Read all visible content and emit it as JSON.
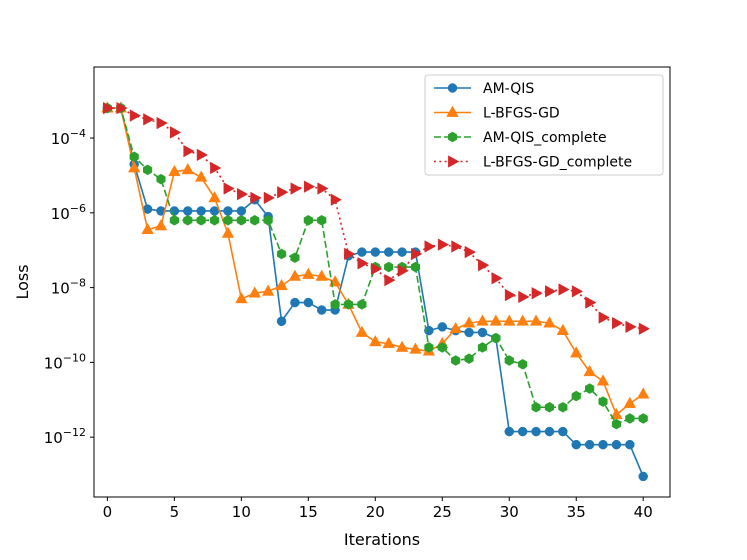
{
  "chart_data": {
    "type": "line",
    "title": "",
    "xlabel": "Iterations",
    "ylabel": "Loss",
    "yscale": "log",
    "xlim": [
      -1,
      42
    ],
    "ylim_log10": [
      -13.6,
      -2.1
    ],
    "xticks": [
      0,
      5,
      10,
      15,
      20,
      25,
      30,
      35,
      40
    ],
    "xtick_labels": [
      "0",
      "5",
      "10",
      "15",
      "20",
      "25",
      "30",
      "35",
      "40"
    ],
    "yticks_log10": [
      -4,
      -6,
      -8,
      -10,
      -12
    ],
    "ytick_labels": [
      {
        "base": "10",
        "exp": "−4"
      },
      {
        "base": "10",
        "exp": "−6"
      },
      {
        "base": "10",
        "exp": "−8"
      },
      {
        "base": "10",
        "exp": "−10"
      },
      {
        "base": "10",
        "exp": "−12"
      }
    ],
    "grid": false,
    "legend_position": "top-right",
    "series": [
      {
        "name": "AM-QIS",
        "color": "#1f77b4",
        "linestyle": "solid",
        "marker": "circle",
        "x": [
          0,
          1,
          2,
          3,
          4,
          5,
          6,
          7,
          8,
          9,
          10,
          11,
          12,
          13,
          14,
          15,
          16,
          17,
          18,
          19,
          20,
          21,
          22,
          23,
          24,
          25,
          26,
          27,
          28,
          29,
          30,
          31,
          32,
          33,
          34,
          35,
          36,
          37,
          38,
          39,
          40
        ],
        "log10_values": [
          -3.2,
          -3.2,
          -4.7,
          -5.9,
          -5.95,
          -5.95,
          -5.95,
          -5.95,
          -5.95,
          -5.95,
          -5.95,
          -5.65,
          -6.1,
          -8.9,
          -8.4,
          -8.4,
          -8.6,
          -8.6,
          -7.15,
          -7.05,
          -7.05,
          -7.05,
          -7.05,
          -7.05,
          -9.15,
          -9.05,
          -9.15,
          -9.2,
          -9.2,
          -9.35,
          -11.85,
          -11.85,
          -11.85,
          -11.85,
          -11.85,
          -12.2,
          -12.2,
          -12.2,
          -12.2,
          -12.2,
          -13.05
        ]
      },
      {
        "name": "L-BFGS-GD",
        "color": "#ff7f0e",
        "linestyle": "solid",
        "marker": "triangle-up",
        "x": [
          0,
          1,
          2,
          3,
          4,
          5,
          6,
          7,
          8,
          9,
          10,
          11,
          12,
          13,
          14,
          15,
          16,
          17,
          18,
          19,
          20,
          21,
          22,
          23,
          24,
          25,
          26,
          27,
          28,
          29,
          30,
          31,
          32,
          33,
          34,
          35,
          36,
          37,
          38,
          39,
          40
        ],
        "log10_values": [
          -3.2,
          -3.2,
          -4.8,
          -6.45,
          -6.35,
          -4.9,
          -4.85,
          -5.05,
          -5.6,
          -6.55,
          -8.3,
          -8.15,
          -8.1,
          -7.95,
          -7.7,
          -7.65,
          -7.7,
          -7.85,
          -8.45,
          -9.2,
          -9.45,
          -9.5,
          -9.6,
          -9.65,
          -9.7,
          -9.5,
          -9.1,
          -8.95,
          -8.9,
          -8.9,
          -8.9,
          -8.9,
          -8.9,
          -8.95,
          -9.15,
          -9.75,
          -10.25,
          -10.5,
          -11.4,
          -11.1,
          -10.85
        ]
      },
      {
        "name": "AM-QIS_complete",
        "color": "#2ca02c",
        "linestyle": "dashed",
        "marker": "hexagon",
        "x": [
          0,
          1,
          2,
          3,
          4,
          5,
          6,
          7,
          8,
          9,
          10,
          11,
          12,
          13,
          14,
          15,
          16,
          17,
          18,
          19,
          20,
          21,
          22,
          23,
          24,
          25,
          26,
          27,
          28,
          29,
          30,
          31,
          32,
          33,
          34,
          35,
          36,
          37,
          38,
          39,
          40
        ],
        "log10_values": [
          -3.2,
          -3.2,
          -4.5,
          -4.85,
          -5.1,
          -6.2,
          -6.2,
          -6.2,
          -6.2,
          -6.2,
          -6.2,
          -6.2,
          -6.2,
          -7.1,
          -7.2,
          -6.2,
          -6.2,
          -8.45,
          -8.45,
          -8.45,
          -7.45,
          -7.45,
          -7.45,
          -7.45,
          -9.6,
          -9.6,
          -9.95,
          -9.9,
          -9.6,
          -9.35,
          -9.95,
          -10.05,
          -11.2,
          -11.2,
          -11.2,
          -10.9,
          -10.7,
          -11.05,
          -11.65,
          -11.5,
          -11.5
        ]
      },
      {
        "name": "L-BFGS-GD_complete",
        "color": "#d62728",
        "linestyle": "dotted",
        "marker": "triangle-right",
        "x": [
          0,
          1,
          2,
          3,
          4,
          5,
          6,
          7,
          8,
          9,
          10,
          11,
          12,
          13,
          14,
          15,
          16,
          17,
          18,
          19,
          20,
          21,
          22,
          23,
          24,
          25,
          26,
          27,
          28,
          29,
          30,
          31,
          32,
          33,
          34,
          35,
          36,
          37,
          38,
          39,
          40
        ],
        "log10_values": [
          -3.2,
          -3.2,
          -3.4,
          -3.5,
          -3.6,
          -3.85,
          -4.35,
          -4.45,
          -4.8,
          -5.35,
          -5.5,
          -5.6,
          -5.6,
          -5.45,
          -5.35,
          -5.3,
          -5.35,
          -5.65,
          -7.1,
          -7.35,
          -7.5,
          -7.8,
          -7.55,
          -7.1,
          -6.9,
          -6.85,
          -6.9,
          -7.05,
          -7.4,
          -7.75,
          -8.2,
          -8.25,
          -8.15,
          -8.1,
          -8.05,
          -8.1,
          -8.4,
          -8.8,
          -8.95,
          -9.05,
          -9.1
        ]
      }
    ]
  }
}
